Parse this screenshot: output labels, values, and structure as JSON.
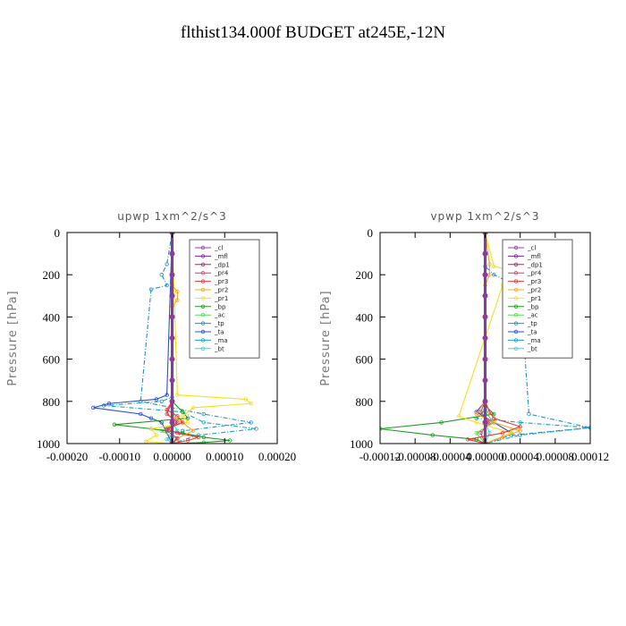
{
  "figure": {
    "title": "flthist134.000f  BUDGET at245E,-12N"
  },
  "legend_entries": [
    "_cl",
    "_mfl",
    "_dp1",
    "_pr4",
    "_pr3",
    "_pr2",
    "_pr1",
    "_bp",
    "_ac",
    "_tp",
    "_ta",
    "_ma",
    "_bt"
  ],
  "series_styles": [
    {
      "name": "_cl",
      "color": "#8e44ad"
    },
    {
      "name": "_mfl",
      "color": "#7b1fa2"
    },
    {
      "name": "_dp1",
      "color": "#9c2a6a"
    },
    {
      "name": "_pr4",
      "color": "#d63c6c"
    },
    {
      "name": "_pr3",
      "color": "#e53935"
    },
    {
      "name": "_pr2",
      "color": "#f5a623"
    },
    {
      "name": "_pr1",
      "color": "#f2e01c"
    },
    {
      "name": "_bp",
      "color": "#1e9a1e"
    },
    {
      "name": "_ac",
      "color": "#55d655"
    },
    {
      "name": "_tp",
      "color": "#1f8fc9"
    },
    {
      "name": "_ta",
      "color": "#2a4fc9"
    },
    {
      "name": "_ma",
      "color": "#1aa0c0"
    },
    {
      "name": "_bt",
      "color": "#33d6e0"
    }
  ],
  "chart_data": [
    {
      "type": "line",
      "title": "upwp   1xm^2/s^3",
      "ylabel": "Pressure [hPa]",
      "xlabel": "",
      "xlim": [
        -0.0002,
        0.0002
      ],
      "ylim": [
        1000,
        0
      ],
      "xticks": [
        "-0.00020",
        "-0.00010",
        "0.00000",
        "0.00010",
        "0.00020"
      ],
      "xtick_values": [
        -0.0002,
        -0.0001,
        0,
        0.0001,
        0.0002
      ],
      "yticks": [
        "0",
        "200",
        "400",
        "600",
        "800",
        "1000"
      ],
      "ytick_values": [
        0,
        200,
        400,
        600,
        800,
        1000
      ],
      "legend_position": "top-right",
      "series": [
        {
          "name": "_cl",
          "x": [
            0,
            0,
            0,
            0,
            0,
            0,
            0,
            0,
            0,
            0,
            0
          ],
          "y": [
            0,
            100,
            200,
            300,
            400,
            500,
            600,
            700,
            800,
            900,
            1000
          ]
        },
        {
          "name": "_mfl",
          "x": [
            0,
            0,
            0,
            0,
            0,
            0,
            0,
            0,
            0,
            0,
            0
          ],
          "y": [
            0,
            100,
            200,
            300,
            400,
            500,
            600,
            700,
            800,
            900,
            1000
          ]
        },
        {
          "name": "_dp1",
          "x": [
            0,
            0,
            0,
            0,
            0,
            0,
            0,
            0,
            0,
            0,
            0
          ],
          "y": [
            0,
            100,
            200,
            300,
            400,
            500,
            600,
            700,
            800,
            900,
            1000
          ]
        },
        {
          "name": "_pr4",
          "x": [
            0,
            0,
            -1e-05,
            1e-05,
            -1e-05,
            1e-05,
            0
          ],
          "y": [
            0,
            800,
            860,
            900,
            940,
            975,
            1000
          ]
        },
        {
          "name": "_pr3",
          "x": [
            0,
            0,
            -1e-05,
            1e-05,
            2e-05,
            -1e-05,
            1e-05,
            5e-05,
            3e-05,
            0
          ],
          "y": [
            0,
            800,
            840,
            870,
            900,
            930,
            950,
            970,
            985,
            1000
          ]
        },
        {
          "name": "_pr2",
          "x": [
            0,
            0,
            1e-05,
            1e-05,
            0,
            0,
            -1e-05,
            2e-05,
            4e-05,
            1e-05,
            0
          ],
          "y": [
            0,
            250,
            280,
            320,
            350,
            800,
            860,
            900,
            940,
            975,
            1000
          ]
        },
        {
          "name": "_pr1",
          "x": [
            0,
            1e-05,
            0.00014,
            0.00015,
            4e-05,
            2e-05,
            3e-05,
            -4e-05,
            -3e-05,
            -5e-05,
            0
          ],
          "y": [
            0,
            770,
            790,
            810,
            830,
            870,
            900,
            930,
            960,
            990,
            1000
          ]
        },
        {
          "name": "_bp",
          "x": [
            0,
            0,
            2e-05,
            3e-05,
            -0.00011,
            -4e-05,
            2e-05,
            6e-05,
            0.00011,
            6e-05,
            0
          ],
          "y": [
            0,
            800,
            850,
            880,
            910,
            930,
            950,
            970,
            985,
            995,
            1000
          ]
        },
        {
          "name": "_ac",
          "x": [
            0,
            0,
            1e-05,
            -2e-05,
            1e-05,
            0
          ],
          "y": [
            0,
            850,
            900,
            940,
            980,
            1000
          ]
        },
        {
          "name": "_tp",
          "x": [
            0,
            -1e-05,
            -2e-05,
            -1e-05,
            -4e-05,
            -6e-05,
            6e-05,
            0.00015,
            2e-05,
            0
          ],
          "y": [
            0,
            150,
            200,
            250,
            270,
            800,
            860,
            900,
            940,
            1000
          ]
        },
        {
          "name": "_ta",
          "x": [
            0,
            -1e-05,
            -3e-05,
            -0.00012,
            -0.00015,
            -6e-05,
            -4e-05,
            -2e-05,
            0
          ],
          "y": [
            0,
            770,
            790,
            810,
            830,
            860,
            880,
            900,
            1000
          ]
        },
        {
          "name": "_ma",
          "x": [
            0,
            0,
            -2e-05,
            -0.00013,
            2e-05,
            6e-05,
            0.00016,
            5e-05,
            0
          ],
          "y": [
            0,
            780,
            800,
            820,
            850,
            900,
            930,
            960,
            1000
          ]
        },
        {
          "name": "_bt",
          "x": [
            0,
            0,
            1e-05,
            -1e-05,
            0
          ],
          "y": [
            0,
            900,
            940,
            980,
            1000
          ]
        }
      ]
    },
    {
      "type": "line",
      "title": "vpwp   1xm^2/s^3",
      "ylabel": "Pressure [hPa]",
      "xlabel": "",
      "xlim": [
        -0.00012,
        0.00012
      ],
      "ylim": [
        1000,
        0
      ],
      "xticks": [
        "-0.00012",
        "-0.00008",
        "-0.00004",
        "0.00000",
        "0.00004",
        "0.00008",
        "0.00012"
      ],
      "xtick_values": [
        -0.00012,
        -8e-05,
        -4e-05,
        0,
        4e-05,
        8e-05,
        0.00012
      ],
      "yticks": [
        "0",
        "200",
        "400",
        "600",
        "800",
        "1000"
      ],
      "ytick_values": [
        0,
        200,
        400,
        600,
        800,
        1000
      ],
      "legend_position": "top-right",
      "series": [
        {
          "name": "_cl",
          "x": [
            0,
            0,
            0,
            0,
            0,
            0,
            0,
            0,
            0,
            0,
            0
          ],
          "y": [
            0,
            100,
            200,
            300,
            400,
            500,
            600,
            700,
            800,
            900,
            1000
          ]
        },
        {
          "name": "_mfl",
          "x": [
            0,
            0,
            0,
            0,
            0,
            0,
            0,
            0,
            0,
            0,
            0
          ],
          "y": [
            0,
            100,
            200,
            300,
            400,
            500,
            600,
            700,
            800,
            900,
            1000
          ]
        },
        {
          "name": "_dp1",
          "x": [
            0,
            0,
            0,
            0,
            0,
            0,
            0,
            0,
            0,
            0,
            0
          ],
          "y": [
            0,
            100,
            200,
            300,
            400,
            500,
            600,
            700,
            800,
            900,
            1000
          ]
        },
        {
          "name": "_pr4",
          "x": [
            0,
            0,
            -5e-06,
            5e-06,
            -5e-06,
            0
          ],
          "y": [
            0,
            800,
            850,
            900,
            950,
            1000
          ]
        },
        {
          "name": "_pr3",
          "x": [
            0,
            0,
            5e-06,
            1e-05,
            4e-05,
            2e-05,
            -2e-05,
            0
          ],
          "y": [
            0,
            800,
            850,
            880,
            920,
            950,
            980,
            1000
          ]
        },
        {
          "name": "_pr2",
          "x": [
            0,
            5e-06,
            5e-06,
            0,
            0,
            -1e-05,
            1e-05,
            4e-05,
            2e-05,
            0
          ],
          "y": [
            0,
            150,
            200,
            250,
            800,
            860,
            900,
            940,
            970,
            1000
          ]
        },
        {
          "name": "_pr1",
          "x": [
            0,
            1e-05,
            3e-05,
            4e-05,
            2e-05,
            -3e-05,
            -1e-05,
            3e-05,
            0
          ],
          "y": [
            0,
            160,
            180,
            200,
            250,
            870,
            900,
            950,
            1000
          ]
        },
        {
          "name": "_bp",
          "x": [
            0,
            0,
            1e-05,
            -5e-05,
            -0.00012,
            -6e-05,
            -1e-05,
            0
          ],
          "y": [
            0,
            820,
            860,
            900,
            930,
            960,
            980,
            1000
          ]
        },
        {
          "name": "_ac",
          "x": [
            0,
            0,
            1e-05,
            -1e-05,
            0
          ],
          "y": [
            0,
            850,
            900,
            950,
            1000
          ]
        },
        {
          "name": "_tp",
          "x": [
            0,
            0,
            1e-05,
            4e-05,
            5e-05,
            0.00012,
            3e-05,
            0
          ],
          "y": [
            0,
            160,
            200,
            260,
            860,
            925,
            960,
            1000
          ]
        },
        {
          "name": "_ta",
          "x": [
            0,
            0,
            -1e-05,
            1e-05,
            3e-05,
            0
          ],
          "y": [
            0,
            800,
            850,
            900,
            950,
            1000
          ]
        },
        {
          "name": "_ma",
          "x": [
            0,
            0,
            -1e-05,
            4e-05,
            0.00012,
            4e-05,
            0
          ],
          "y": [
            0,
            840,
            880,
            900,
            925,
            960,
            1000
          ]
        },
        {
          "name": "_bt",
          "x": [
            0,
            0,
            5e-06,
            0
          ],
          "y": [
            0,
            900,
            950,
            1000
          ]
        }
      ]
    }
  ]
}
